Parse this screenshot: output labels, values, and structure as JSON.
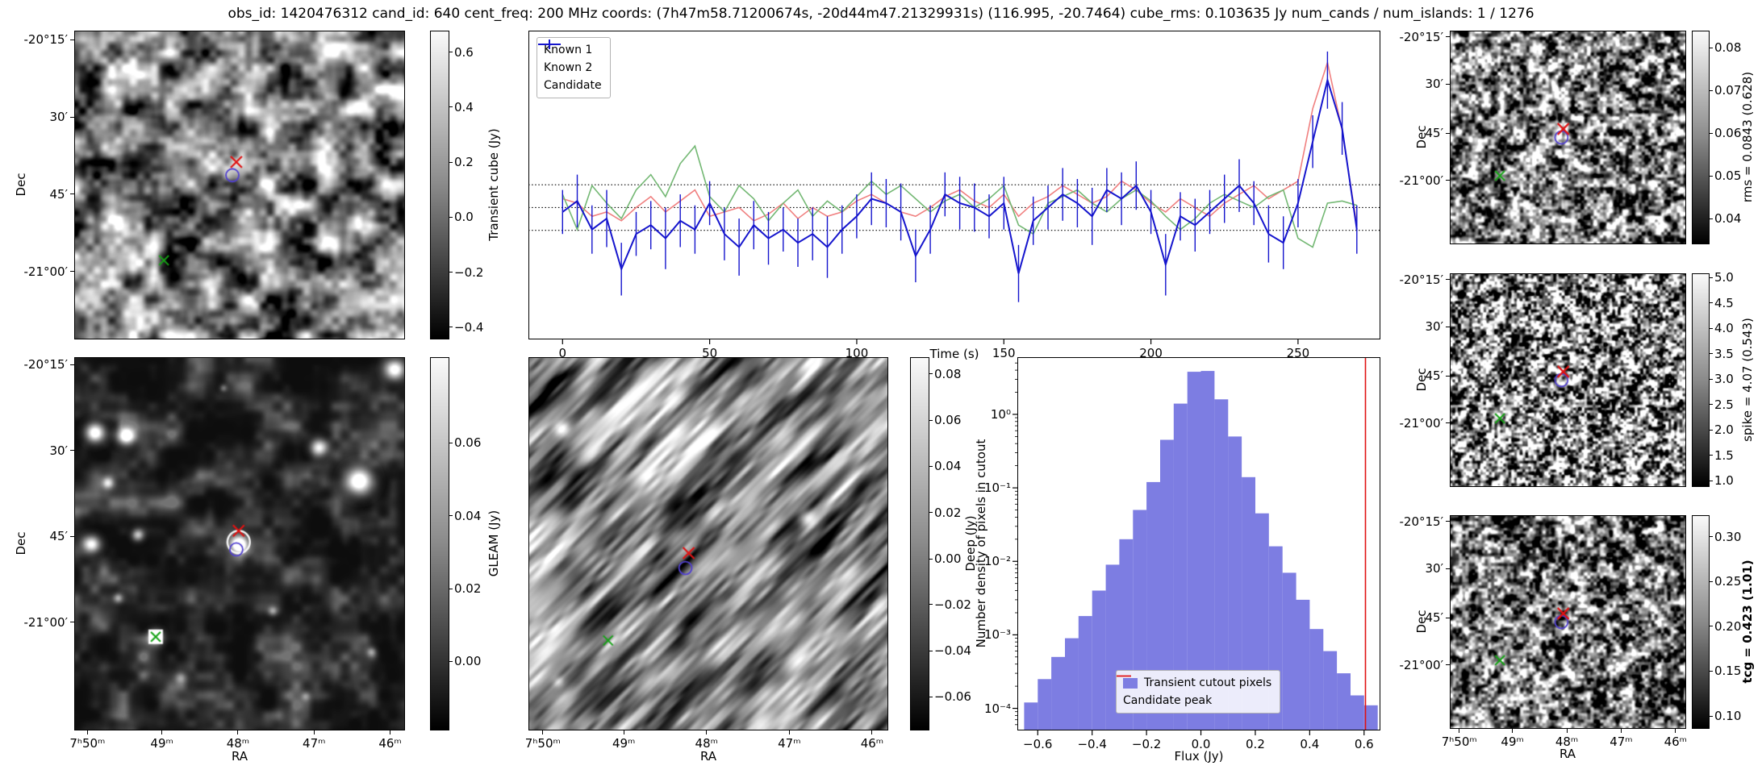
{
  "title": "obs_id: 1420476312 cand_id: 640 cent_freq: 200 MHz coords: (7h47m58.71200674s, -20d44m47.21329931s) (116.995, -20.7464) cube_rms: 0.103635 Jy num_cands / num_islands: 1 / 1276",
  "axis": {
    "dec_label": "Dec",
    "ra_label": "RA",
    "dec_ticks": [
      "-20°15′",
      "30′",
      "45′",
      "-21°00′"
    ],
    "ra_ticks": [
      "7ʰ50ᵐ",
      "49ᵐ",
      "48ᵐ",
      "47ᵐ",
      "46ᵐ"
    ]
  },
  "image_panels": {
    "transient": {
      "colorbar_label": "Transient cube (Jy)",
      "cbar_ticks": [
        "0.6",
        "0.4",
        "0.2",
        "0.0",
        "−0.2",
        "−0.4"
      ]
    },
    "gleam": {
      "colorbar_label": "GLEAM (Jy)",
      "cbar_ticks": [
        "0.06",
        "0.04",
        "0.02",
        "0.00"
      ]
    },
    "deep": {
      "colorbar_label": "Deep (Jy)",
      "cbar_ticks": [
        "0.08",
        "0.06",
        "0.04",
        "0.02",
        "0.00",
        "−0.02",
        "−0.04",
        "−0.06"
      ]
    },
    "rms": {
      "colorbar_label": "rms = 0.0843 (0.628)",
      "cbar_ticks": [
        "0.08",
        "0.07",
        "0.06",
        "0.05",
        "0.04"
      ]
    },
    "spike": {
      "colorbar_label": "spike = 4.07 (0.543)",
      "cbar_ticks": [
        "5.0",
        "4.5",
        "4.0",
        "3.5",
        "3.0",
        "2.5",
        "2.0",
        "1.5",
        "1.0"
      ]
    },
    "tcg": {
      "colorbar_label": "tcg = 0.423 (1.01)",
      "cbar_ticks": [
        "0.30",
        "0.25",
        "0.20",
        "0.15",
        "0.10"
      ],
      "bold": true
    }
  },
  "colors": {
    "known1": "#f08080",
    "known2": "#74b874",
    "candidate": "#1515cd",
    "hist_bar": "#7d7de2",
    "candidate_peak_line": "#e01212",
    "marker_red": "#e01212",
    "marker_green": "#16a316",
    "marker_blue_circle": "#5140d0"
  },
  "sky_markers": {
    "transient": {
      "candidate": [
        0.49,
        0.425
      ],
      "companion_circle": [
        0.478,
        0.468
      ],
      "known_source": [
        0.27,
        0.745
      ]
    },
    "gleam": {
      "candidate": [
        0.497,
        0.465
      ],
      "companion_circle": [
        0.49,
        0.515
      ],
      "known_source": [
        0.245,
        0.75
      ],
      "known_square": true,
      "source_ring": [
        0.497,
        0.495
      ]
    },
    "deep": {
      "candidate": [
        0.445,
        0.525
      ],
      "companion_circle": [
        0.436,
        0.565
      ],
      "known_source": [
        0.22,
        0.76
      ]
    },
    "rms": {
      "candidate": [
        0.48,
        0.46
      ],
      "companion_circle": [
        0.472,
        0.5
      ],
      "known_source": [
        0.21,
        0.68
      ]
    },
    "spike": {
      "candidate": [
        0.48,
        0.46
      ],
      "companion_circle": [
        0.472,
        0.5
      ],
      "known_source": [
        0.21,
        0.68
      ]
    },
    "tcg": {
      "candidate": [
        0.48,
        0.46
      ],
      "companion_circle": [
        0.472,
        0.5
      ],
      "known_source": [
        0.21,
        0.68
      ]
    }
  },
  "chart_data": [
    {
      "type": "line",
      "title": "",
      "xlabel": "Time (s)",
      "ylabel": "",
      "xlim": [
        -11.6,
        278
      ],
      "ylim": [
        -0.6,
        0.805
      ],
      "grid": false,
      "legend_position": "upper left",
      "xticks": [
        0,
        50,
        100,
        150,
        200,
        250
      ],
      "xtick_labels": [
        "0",
        "50",
        "100",
        "150",
        "200",
        "250"
      ],
      "threshold_lines": [
        0.103635,
        0,
        -0.103635
      ],
      "x": [
        0,
        5,
        10,
        15,
        20,
        25,
        30,
        35,
        40,
        45,
        50,
        55,
        60,
        65,
        70,
        75,
        80,
        85,
        90,
        95,
        100,
        105,
        110,
        115,
        120,
        125,
        130,
        135,
        140,
        145,
        150,
        155,
        160,
        165,
        170,
        175,
        180,
        185,
        190,
        195,
        200,
        205,
        210,
        215,
        220,
        225,
        230,
        235,
        240,
        245,
        250,
        255,
        260,
        265,
        270
      ],
      "series": [
        {
          "name": "Known 1",
          "color": "#f08080",
          "values": [
            0.04,
            0.02,
            -0.04,
            -0.02,
            -0.06,
            0.0,
            0.05,
            -0.02,
            0.03,
            0.08,
            -0.04,
            -0.02,
            0.0,
            -0.06,
            -0.03,
            0.02,
            -0.05,
            0.0,
            -0.04,
            -0.02,
            0.03,
            0.06,
            0.02,
            -0.02,
            -0.04,
            0.0,
            0.05,
            0.08,
            0.03,
            0.0,
            0.06,
            -0.04,
            0.02,
            0.05,
            0.1,
            0.06,
            0.02,
            0.05,
            0.12,
            0.08,
            0.02,
            -0.02,
            0.04,
            0.0,
            -0.04,
            0.02,
            0.06,
            0.1,
            0.04,
            0.08,
            0.12,
            0.45,
            0.66,
            0.35,
            -0.08
          ]
        },
        {
          "name": "Known 2",
          "color": "#74b874",
          "values": [
            0.06,
            -0.1,
            0.1,
            0.02,
            -0.05,
            0.08,
            0.15,
            0.05,
            0.2,
            0.28,
            0.05,
            -0.02,
            0.1,
            0.04,
            -0.06,
            0.02,
            0.08,
            -0.04,
            0.03,
            -0.02,
            0.05,
            0.12,
            0.06,
            0.1,
            0.04,
            -0.02,
            0.03,
            0.06,
            0.0,
            0.04,
            0.1,
            -0.08,
            -0.12,
            0.02,
            0.05,
            0.08,
            0.02,
            -0.02,
            0.04,
            0.08,
            0.03,
            -0.04,
            -0.1,
            -0.05,
            0.02,
            0.06,
            0.03,
            0.0,
            0.05,
            0.08,
            -0.14,
            -0.18,
            0.02,
            0.03,
            0.01
          ]
        },
        {
          "name": "Candidate",
          "color": "#1515cd",
          "has_errorbars": true,
          "values": [
            -0.02,
            0.03,
            -0.1,
            -0.05,
            -0.28,
            -0.12,
            -0.08,
            -0.14,
            -0.06,
            -0.1,
            0.02,
            -0.12,
            -0.18,
            -0.08,
            -0.14,
            -0.1,
            -0.16,
            -0.12,
            -0.18,
            -0.1,
            -0.04,
            0.04,
            0.02,
            -0.02,
            -0.22,
            -0.1,
            0.06,
            0.02,
            0.0,
            -0.04,
            0.02,
            -0.3,
            -0.06,
            0.0,
            0.06,
            0.02,
            -0.04,
            0.08,
            0.04,
            0.1,
            -0.02,
            -0.26,
            -0.04,
            -0.08,
            -0.02,
            0.04,
            0.1,
            0.02,
            -0.12,
            -0.16,
            0.02,
            0.3,
            0.58,
            0.36,
            -0.1
          ],
          "errors": [
            0.1,
            0.12,
            0.11,
            0.13,
            0.12,
            0.1,
            0.11,
            0.14,
            0.12,
            0.11,
            0.1,
            0.12,
            0.13,
            0.11,
            0.12,
            0.1,
            0.11,
            0.12,
            0.14,
            0.11,
            0.1,
            0.12,
            0.11,
            0.13,
            0.12,
            0.11,
            0.1,
            0.12,
            0.11,
            0.1,
            0.12,
            0.13,
            0.11,
            0.1,
            0.12,
            0.11,
            0.13,
            0.1,
            0.12,
            0.11,
            0.1,
            0.14,
            0.11,
            0.12,
            0.1,
            0.11,
            0.12,
            0.1,
            0.13,
            0.12,
            0.11,
            0.12,
            0.13,
            0.12,
            0.11
          ]
        }
      ]
    },
    {
      "type": "bar",
      "xlabel": "Flux (Jy)",
      "ylabel": "Number density of pixels in cutout",
      "yscale": "log",
      "xlim": [
        -0.675,
        0.66
      ],
      "ylim": [
        5e-05,
        6
      ],
      "bin_start": -0.65,
      "bin_width": 0.05,
      "densities": [
        0.00012,
        0.00025,
        0.0005,
        0.0009,
        0.0018,
        0.004,
        0.009,
        0.02,
        0.05,
        0.12,
        0.45,
        1.4,
        3.8,
        3.9,
        1.6,
        0.5,
        0.14,
        0.045,
        0.016,
        0.007,
        0.003,
        0.0012,
        0.0006,
        0.0003,
        0.00015,
        0.00011
      ],
      "bar_color": "#7d7de2",
      "candidate_peak": 0.605,
      "peak_color": "#e01212",
      "xticks": [
        -0.6,
        -0.4,
        -0.2,
        0,
        0.2,
        0.4,
        0.6
      ],
      "xtick_labels": [
        "−0.6",
        "−0.4",
        "−0.2",
        "0.0",
        "0.2",
        "0.4",
        "0.6"
      ],
      "ytick_values": [
        1,
        0.1,
        0.01,
        0.001,
        0.0001
      ],
      "ytick_labels": [
        "10⁰",
        "10⁻¹",
        "10⁻²",
        "10⁻³",
        "10⁻⁴"
      ],
      "legend": [
        "Transient cutout pixels",
        "Candidate peak"
      ],
      "legend_position": "lower center"
    }
  ]
}
